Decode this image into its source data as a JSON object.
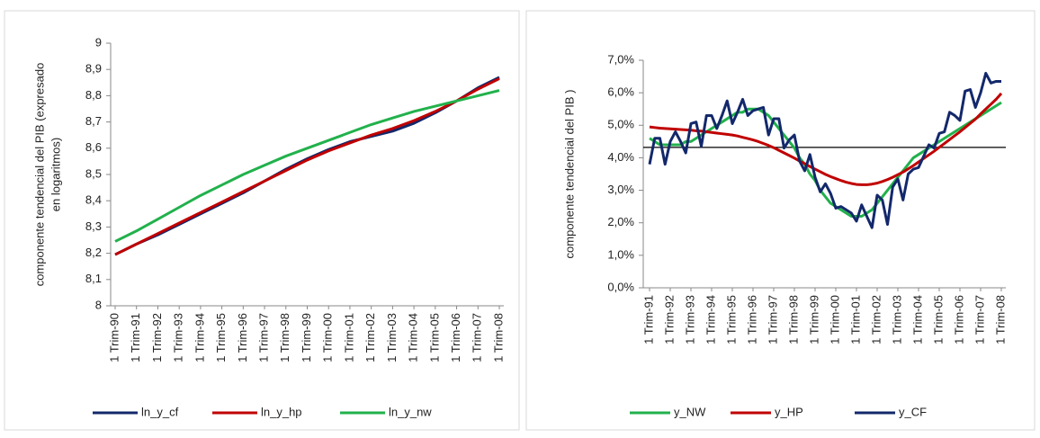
{
  "chart_data": [
    {
      "type": "line",
      "ylabel": [
        "componente tendencial del PIB (expresado",
        "en logaritmos)"
      ],
      "categories": [
        "1 Trim-90",
        "1 Trim-91",
        "1 Trim-92",
        "1 Trim-93",
        "1 Trim-94",
        "1 Trim-95",
        "1 Trim-96",
        "1 Trim-97",
        "1 Trim-98",
        "1 Trim-99",
        "1 Trim-00",
        "1 Trim-01",
        "1 Trim-02",
        "1 Trim-03",
        "1 Trim-04",
        "1 Trim-05",
        "1 Trim-06",
        "1 Trim-07",
        "1 Trim-08"
      ],
      "series": [
        {
          "name": "ln_y_cf",
          "color": "#13286b",
          "values": [
            8.195,
            8.235,
            8.27,
            8.31,
            8.35,
            8.39,
            8.43,
            8.475,
            8.52,
            8.56,
            8.595,
            8.625,
            8.645,
            8.665,
            8.695,
            8.735,
            8.78,
            8.83,
            8.87
          ]
        },
        {
          "name": "ln_y_hp",
          "color": "#c00000",
          "values": [
            8.195,
            8.235,
            8.275,
            8.315,
            8.355,
            8.395,
            8.435,
            8.475,
            8.515,
            8.555,
            8.59,
            8.62,
            8.65,
            8.675,
            8.705,
            8.74,
            8.78,
            8.825,
            8.865
          ]
        },
        {
          "name": "ln_y_nw",
          "color": "#22b14c",
          "values": [
            8.245,
            8.285,
            8.33,
            8.375,
            8.42,
            8.46,
            8.5,
            8.535,
            8.57,
            8.6,
            8.63,
            8.66,
            8.69,
            8.715,
            8.74,
            8.76,
            8.78,
            8.8,
            8.82
          ]
        }
      ],
      "ylim": [
        8,
        9
      ],
      "yticks": [
        8,
        {
          "value": 8.1,
          "label": "8,1"
        },
        {
          "value": 8.2,
          "label": "8,2"
        },
        {
          "value": 8.3,
          "label": "8,3"
        },
        {
          "value": 8.4,
          "label": "8,4"
        },
        {
          "value": 8.5,
          "label": "8,5"
        },
        {
          "value": 8.6,
          "label": "8,6"
        },
        {
          "value": 8.7,
          "label": "8,7"
        },
        {
          "value": 8.8,
          "label": "8,8"
        },
        {
          "value": 8.9,
          "label": "8,9"
        },
        9
      ]
    },
    {
      "type": "line",
      "ylabel": [
        "componente tendencial del PIB )"
      ],
      "categories": [
        "1 Trim-91",
        null,
        null,
        null,
        "1 Trim-92",
        null,
        null,
        null,
        "1 Trim-93",
        null,
        null,
        null,
        "1 Trim-94",
        null,
        null,
        null,
        "1 Trim-95",
        null,
        null,
        null,
        "1 Trim-96",
        null,
        null,
        null,
        "1 Trim-97",
        null,
        null,
        null,
        "1 Trim-98",
        null,
        null,
        null,
        "1 Trim-99",
        null,
        null,
        null,
        "1 Trim-00",
        null,
        null,
        null,
        "1 Trim-01",
        null,
        null,
        null,
        "1 Trim-02",
        null,
        null,
        null,
        "1 Trim-03",
        null,
        null,
        null,
        "1 Trim-04",
        null,
        null,
        null,
        "1 Trim-05",
        null,
        null,
        null,
        "1 Trim-06",
        null,
        null,
        null,
        "1 Trim-07",
        null,
        null,
        null,
        "1 Trim-08"
      ],
      "series": [
        {
          "name": "y_NW",
          "color": "#22b14c",
          "values": [
            4.6,
            4.5,
            4.4,
            4.4,
            4.4,
            4.4,
            4.4,
            4.5,
            4.5,
            4.6,
            4.7,
            4.8,
            4.9,
            5.0,
            5.1,
            5.2,
            5.3,
            5.4,
            5.4,
            5.5,
            5.5,
            5.5,
            5.4,
            5.3,
            5.1,
            4.9,
            4.7,
            4.5,
            4.3,
            4.0,
            3.8,
            3.5,
            3.3,
            3.0,
            2.8,
            2.6,
            2.5,
            2.4,
            2.3,
            2.2,
            2.2,
            2.2,
            2.3,
            2.4,
            2.6,
            2.8,
            3.0,
            3.2,
            3.4,
            3.6,
            3.8,
            4.0,
            4.1,
            4.2,
            4.3,
            4.4,
            4.5,
            4.6,
            4.7,
            4.8,
            4.9,
            5.0,
            5.1,
            5.2,
            5.3,
            5.4,
            5.5,
            5.6,
            5.7
          ]
        },
        {
          "name": "y_HP",
          "color": "#c00000",
          "values": [
            4.95,
            4.93,
            4.91,
            4.9,
            4.89,
            4.88,
            4.87,
            4.86,
            4.85,
            4.83,
            4.82,
            4.8,
            4.78,
            4.76,
            4.74,
            4.72,
            4.7,
            4.67,
            4.63,
            4.59,
            4.55,
            4.5,
            4.44,
            4.38,
            4.31,
            4.23,
            4.15,
            4.07,
            3.99,
            3.9,
            3.82,
            3.73,
            3.65,
            3.57,
            3.49,
            3.42,
            3.36,
            3.3,
            3.25,
            3.21,
            3.18,
            3.17,
            3.17,
            3.19,
            3.22,
            3.27,
            3.33,
            3.4,
            3.48,
            3.56,
            3.66,
            3.76,
            3.87,
            3.98,
            4.09,
            4.2,
            4.32,
            4.44,
            4.56,
            4.68,
            4.8,
            4.93,
            5.06,
            5.19,
            5.35,
            5.5,
            5.65,
            5.8,
            5.98
          ]
        },
        {
          "name": "y_CF",
          "color": "#13286b",
          "values": [
            3.8,
            4.6,
            4.6,
            3.8,
            4.5,
            4.8,
            4.5,
            4.15,
            5.05,
            5.1,
            4.35,
            5.3,
            5.3,
            4.9,
            5.3,
            5.75,
            5.05,
            5.4,
            5.8,
            5.3,
            5.45,
            5.5,
            5.55,
            4.7,
            5.2,
            5.2,
            4.3,
            4.55,
            4.7,
            3.9,
            3.6,
            4.1,
            3.4,
            2.95,
            3.2,
            2.9,
            2.45,
            2.5,
            2.4,
            2.3,
            2.05,
            2.55,
            2.2,
            1.85,
            2.85,
            2.7,
            1.95,
            3.1,
            3.35,
            2.7,
            3.5,
            3.65,
            3.7,
            4.05,
            4.4,
            4.3,
            4.75,
            4.8,
            5.4,
            5.3,
            5.15,
            6.05,
            6.1,
            5.55,
            6.0,
            6.6,
            6.3,
            6.35,
            6.35
          ]
        }
      ],
      "hline": 4.32,
      "ylim": [
        0,
        7
      ],
      "yticks": [
        {
          "value": 0,
          "label": "0,0%"
        },
        {
          "value": 1,
          "label": "1,0%"
        },
        {
          "value": 2,
          "label": "2,0%"
        },
        {
          "value": 3,
          "label": "3,0%"
        },
        {
          "value": 4,
          "label": "4,0%"
        },
        {
          "value": 5,
          "label": "5,0%"
        },
        {
          "value": 6,
          "label": "6,0%"
        },
        {
          "value": 7,
          "label": "7,0%"
        }
      ]
    }
  ]
}
